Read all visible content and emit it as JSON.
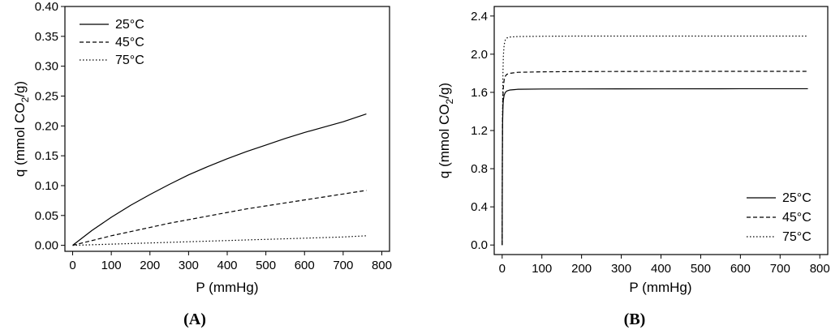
{
  "chart_data": [
    {
      "type": "line",
      "panel_label": "(A)",
      "xlabel": "P (mmHg)",
      "ylabel": "q (mmol CO2/g)",
      "xlim": [
        -20,
        820
      ],
      "ylim": [
        -0.01,
        0.4
      ],
      "xticks": [
        0,
        100,
        200,
        300,
        400,
        500,
        600,
        700,
        800
      ],
      "yticks": [
        0.0,
        0.05,
        0.1,
        0.15,
        0.2,
        0.25,
        0.3,
        0.35,
        0.4
      ],
      "ytick_labels": [
        "0.00",
        "0.05",
        "0.10",
        "0.15",
        "0.20",
        "0.25",
        "0.30",
        "0.35",
        "0.40"
      ],
      "legend_position": "top-left",
      "x": [
        0,
        50,
        100,
        150,
        200,
        250,
        300,
        350,
        400,
        450,
        500,
        550,
        600,
        650,
        700,
        760
      ],
      "series": [
        {
          "name": "25°C",
          "style": "solid",
          "values": [
            0.0,
            0.025,
            0.047,
            0.067,
            0.085,
            0.102,
            0.118,
            0.132,
            0.145,
            0.157,
            0.168,
            0.179,
            0.189,
            0.198,
            0.207,
            0.22
          ]
        },
        {
          "name": "45°C",
          "style": "dashed",
          "values": [
            0.0,
            0.008,
            0.016,
            0.023,
            0.03,
            0.037,
            0.043,
            0.049,
            0.055,
            0.061,
            0.066,
            0.071,
            0.076,
            0.081,
            0.086,
            0.092
          ]
        },
        {
          "name": "75°C",
          "style": "dotted",
          "values": [
            0.0,
            0.001,
            0.002,
            0.003,
            0.004,
            0.005,
            0.006,
            0.007,
            0.008,
            0.009,
            0.01,
            0.011,
            0.012,
            0.013,
            0.014,
            0.016
          ]
        }
      ]
    },
    {
      "type": "line",
      "panel_label": "(B)",
      "xlabel": "P (mmHg)",
      "ylabel": "q (mmol CO2/g)",
      "xlim": [
        -20,
        820
      ],
      "ylim": [
        -0.1,
        2.5
      ],
      "xticks": [
        0,
        100,
        200,
        300,
        400,
        500,
        600,
        700,
        800
      ],
      "yticks": [
        0.0,
        0.4,
        0.8,
        1.2,
        1.6,
        2.0,
        2.4
      ],
      "ytick_labels": [
        "0.0",
        "0.4",
        "0.8",
        "1.2",
        "1.6",
        "2.0",
        "2.4"
      ],
      "legend_position": "bottom-right",
      "x": [
        0,
        0.5,
        1,
        2,
        3,
        5,
        8,
        12,
        20,
        40,
        100,
        200,
        400,
        600,
        770
      ],
      "series": [
        {
          "name": "25°C",
          "style": "solid",
          "values": [
            0.0,
            0.9,
            1.25,
            1.45,
            1.52,
            1.57,
            1.6,
            1.615,
            1.625,
            1.632,
            1.635,
            1.636,
            1.637,
            1.638,
            1.638
          ]
        },
        {
          "name": "45°C",
          "style": "dashed",
          "values": [
            0.0,
            0.9,
            1.3,
            1.55,
            1.65,
            1.73,
            1.77,
            1.79,
            1.8,
            1.81,
            1.815,
            1.818,
            1.82,
            1.82,
            1.82
          ]
        },
        {
          "name": "75°C",
          "style": "dotted",
          "values": [
            0.0,
            1.0,
            1.4,
            1.8,
            1.98,
            2.1,
            2.15,
            2.17,
            2.18,
            2.185,
            2.188,
            2.19,
            2.19,
            2.19,
            2.19
          ]
        }
      ]
    }
  ]
}
